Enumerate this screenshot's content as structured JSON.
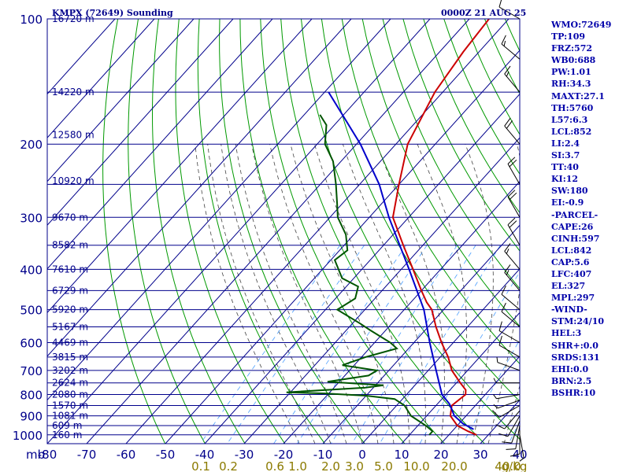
{
  "header": {
    "station": "KMPX (72649) Sounding",
    "time": "0000Z 21 AUG 25"
  },
  "stats": [
    "WMO:72649",
    "TP:109",
    "FRZ:572",
    "WB0:688",
    "PW:1.01",
    "RH:34.3",
    "MAXT:27.1",
    "TH:5760",
    "L57:6.3",
    "LCL:852",
    "LI:2.4",
    "SI:3.7",
    "TT:40",
    "KI:12",
    "SW:180",
    "EI:-0.9",
    "-PARCEL-",
    "CAPE:26",
    "CINH:597",
    "LCL:842",
    "CAP:5.6",
    "LFC:407",
    "EL:327",
    "MPL:297",
    "-WIND-",
    "STM:24/10",
    "HEL:3",
    "SHR+:0.0",
    "SRDS:131",
    "EHI:0.0",
    "BRN:2.5",
    "BSHR:10"
  ],
  "colors": {
    "isobar": "#00008b",
    "isotherm": "#00008b",
    "dry_adiabat": "#009900",
    "moist_adiabat": "#444444",
    "mixing_ratio": "#4a9eff",
    "temperature": "#cc0000",
    "dewpoint": "#005500",
    "parcel": "#0000cc",
    "wind": "#000000"
  },
  "chart_data": {
    "type": "line",
    "title": "KMPX (72649) Sounding",
    "subtitle": "0000Z 21 AUG 25",
    "pressure_unit_label": "mb",
    "mixing_ratio_unit": "g/kg",
    "pressure_levels": [
      100,
      200,
      300,
      400,
      500,
      600,
      700,
      800,
      900,
      1000
    ],
    "pressure_labels": [
      "100",
      "200",
      "300",
      "400",
      "500",
      "600",
      "700",
      "800",
      "900",
      "1000"
    ],
    "temperature_ticks": [
      -80,
      -70,
      -60,
      -50,
      -40,
      -30,
      -20,
      -10,
      0,
      10,
      20,
      30,
      40
    ],
    "temperature_labels": [
      "-80",
      "-70",
      "-60",
      "-50",
      "-40",
      "-30",
      "-20",
      "-10",
      "0",
      "10",
      "20",
      "30",
      "40"
    ],
    "mixing_ratio_labels": [
      "0.1",
      "0.2",
      "0.6",
      "1.0",
      "2.0",
      "3.0",
      "5.0",
      "10.0",
      "20.0",
      "40.0",
      "g/kg"
    ],
    "height_labels": [
      {
        "p": 100,
        "text": "16720 m"
      },
      {
        "p": 150,
        "text": "14220 m"
      },
      {
        "p": 190,
        "text": "12580 m"
      },
      {
        "p": 245,
        "text": "10920 m"
      },
      {
        "p": 300,
        "text": "9670 m"
      },
      {
        "p": 350,
        "text": "8582 m"
      },
      {
        "p": 400,
        "text": "7610 m"
      },
      {
        "p": 450,
        "text": "6729 m"
      },
      {
        "p": 500,
        "text": "5920 m"
      },
      {
        "p": 550,
        "text": "5167 m"
      },
      {
        "p": 600,
        "text": "4469 m"
      },
      {
        "p": 650,
        "text": "3815 m"
      },
      {
        "p": 700,
        "text": "3202 m"
      },
      {
        "p": 750,
        "text": "2624 m"
      },
      {
        "p": 800,
        "text": "2080 m"
      },
      {
        "p": 850,
        "text": "1570 m"
      },
      {
        "p": 900,
        "text": "1081 m"
      },
      {
        "p": 950,
        "text": "609 m"
      },
      {
        "p": 1000,
        "text": "160 m"
      }
    ],
    "series": [
      {
        "name": "temperature",
        "points": [
          [
            1000,
            27
          ],
          [
            980,
            24
          ],
          [
            950,
            20
          ],
          [
            900,
            16
          ],
          [
            850,
            14
          ],
          [
            800,
            15
          ],
          [
            780,
            14
          ],
          [
            750,
            11
          ],
          [
            700,
            6
          ],
          [
            650,
            2
          ],
          [
            600,
            -3
          ],
          [
            550,
            -8
          ],
          [
            500,
            -13
          ],
          [
            480,
            -16
          ],
          [
            450,
            -20
          ],
          [
            400,
            -27
          ],
          [
            350,
            -35
          ],
          [
            300,
            -44
          ],
          [
            250,
            -50
          ],
          [
            200,
            -57
          ],
          [
            150,
            -62
          ],
          [
            120,
            -64
          ],
          [
            100,
            -65
          ]
        ]
      },
      {
        "name": "dewpoint",
        "points": [
          [
            1000,
            15
          ],
          [
            980,
            15
          ],
          [
            950,
            12
          ],
          [
            900,
            6
          ],
          [
            850,
            2
          ],
          [
            820,
            -2
          ],
          [
            805,
            -10
          ],
          [
            795,
            -21
          ],
          [
            790,
            -31
          ],
          [
            770,
            -12
          ],
          [
            760,
            -8
          ],
          [
            745,
            -23
          ],
          [
            720,
            -14
          ],
          [
            700,
            -13
          ],
          [
            680,
            -23
          ],
          [
            650,
            -19
          ],
          [
            620,
            -13
          ],
          [
            600,
            -16
          ],
          [
            560,
            -24
          ],
          [
            540,
            -28
          ],
          [
            500,
            -37
          ],
          [
            470,
            -35
          ],
          [
            440,
            -37
          ],
          [
            420,
            -43
          ],
          [
            380,
            -49
          ],
          [
            360,
            -48
          ],
          [
            330,
            -52
          ],
          [
            300,
            -58
          ],
          [
            280,
            -61
          ],
          [
            250,
            -66
          ],
          [
            220,
            -72
          ],
          [
            200,
            -78
          ],
          [
            180,
            -82
          ],
          [
            170,
            -86
          ]
        ]
      },
      {
        "name": "parcel",
        "points": [
          [
            970,
            25
          ],
          [
            940,
            21
          ],
          [
            900,
            17
          ],
          [
            870,
            15
          ],
          [
            842,
            13
          ],
          [
            800,
            9
          ],
          [
            700,
            2
          ],
          [
            600,
            -6
          ],
          [
            500,
            -15
          ],
          [
            400,
            -28
          ],
          [
            300,
            -45
          ],
          [
            250,
            -55
          ],
          [
            200,
            -69
          ],
          [
            150,
            -89
          ]
        ]
      }
    ],
    "wind_barbs": [
      {
        "p": 1000,
        "dir": 170,
        "spd": 5
      },
      {
        "p": 975,
        "dir": 180,
        "spd": 10
      },
      {
        "p": 950,
        "dir": 190,
        "spd": 10
      },
      {
        "p": 925,
        "dir": 200,
        "spd": 10
      },
      {
        "p": 900,
        "dir": 210,
        "spd": 10
      },
      {
        "p": 875,
        "dir": 220,
        "spd": 10
      },
      {
        "p": 850,
        "dir": 240,
        "spd": 10
      },
      {
        "p": 825,
        "dir": 250,
        "spd": 5
      },
      {
        "p": 800,
        "dir": 260,
        "spd": 5
      },
      {
        "p": 750,
        "dir": 270,
        "spd": 5
      },
      {
        "p": 700,
        "dir": 290,
        "spd": 5
      },
      {
        "p": 650,
        "dir": 300,
        "spd": 10
      },
      {
        "p": 600,
        "dir": 300,
        "spd": 10
      },
      {
        "p": 550,
        "dir": 310,
        "spd": 10
      },
      {
        "p": 500,
        "dir": 310,
        "spd": 10
      },
      {
        "p": 450,
        "dir": 320,
        "spd": 15
      },
      {
        "p": 400,
        "dir": 320,
        "spd": 15
      },
      {
        "p": 350,
        "dir": 330,
        "spd": 20
      },
      {
        "p": 300,
        "dir": 330,
        "spd": 20
      },
      {
        "p": 250,
        "dir": 330,
        "spd": 20
      },
      {
        "p": 200,
        "dir": 320,
        "spd": 20
      },
      {
        "p": 150,
        "dir": 320,
        "spd": 15
      },
      {
        "p": 125,
        "dir": 310,
        "spd": 15
      },
      {
        "p": 100,
        "dir": 300,
        "spd": 10
      }
    ]
  }
}
